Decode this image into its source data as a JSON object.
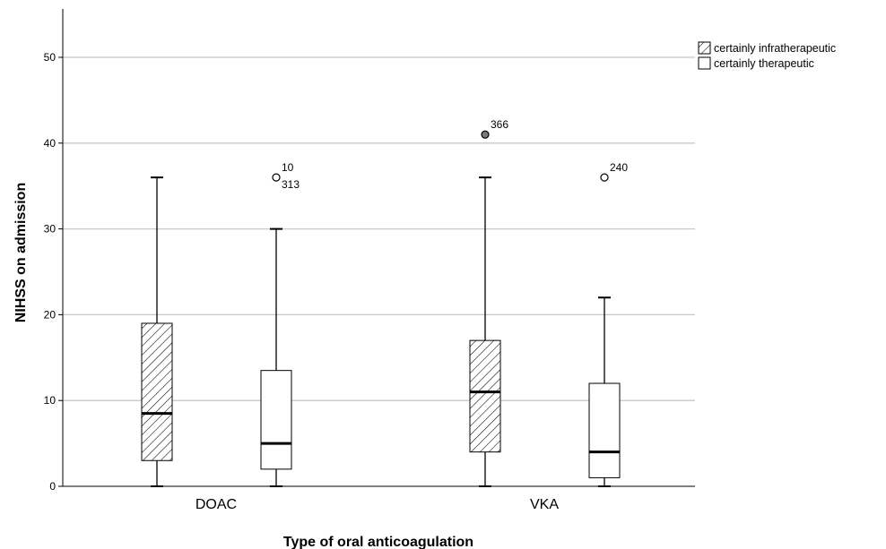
{
  "chart_data": {
    "type": "boxplot",
    "xlabel": "Type of oral anticoagulation",
    "ylabel": "NIHSS on admission",
    "ylim": [
      0,
      55
    ],
    "yticks": [
      0,
      10,
      20,
      30,
      40,
      50
    ],
    "grid": true,
    "legend_position": "top-right",
    "categories": [
      "DOAC",
      "VKA"
    ],
    "series": [
      {
        "name": "certainly infratherapeutic",
        "pattern": "hatched",
        "boxes": [
          {
            "category": "DOAC",
            "min": 0,
            "q1": 3,
            "median": 8.5,
            "q3": 19,
            "max": 36,
            "outliers": []
          },
          {
            "category": "VKA",
            "min": 0,
            "q1": 4,
            "median": 11,
            "q3": 17,
            "max": 36,
            "outliers": [
              {
                "value": 41,
                "labels": [
                  "366"
                ]
              }
            ]
          }
        ]
      },
      {
        "name": "certainly therapeutic",
        "pattern": "plain",
        "boxes": [
          {
            "category": "DOAC",
            "min": 0,
            "q1": 2,
            "median": 5,
            "q3": 13.5,
            "max": 30,
            "outliers": [
              {
                "value": 36,
                "labels": [
                  "10",
                  "313"
                ]
              }
            ]
          },
          {
            "category": "VKA",
            "min": 0,
            "q1": 1,
            "median": 4,
            "q3": 12,
            "max": 22,
            "outliers": [
              {
                "value": 36,
                "labels": [
                  "240"
                ]
              }
            ]
          }
        ]
      }
    ]
  }
}
